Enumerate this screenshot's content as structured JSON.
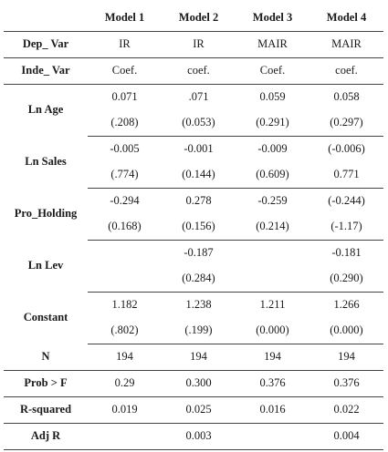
{
  "table": {
    "models": [
      "Model 1",
      "Model 2",
      "Model 3",
      "Model 4"
    ],
    "dep_var": {
      "label": "Dep_ Var",
      "values": [
        "IR",
        "IR",
        "MAIR",
        "MAIR"
      ]
    },
    "inde_var": {
      "label": "Inde_ Var",
      "values": [
        "Coef.",
        "coef.",
        "Coef.",
        "coef."
      ]
    },
    "rows": [
      {
        "label": "Ln Age",
        "coef": [
          "0.071",
          ".071",
          "0.059",
          "0.058"
        ],
        "se": [
          "(.208)",
          "(0.053)",
          "(0.291)",
          "(0.297)"
        ]
      },
      {
        "label": "Ln Sales",
        "coef": [
          "-0.005",
          "-0.001",
          "-0.009",
          "(-0.006)"
        ],
        "se": [
          "(.774)",
          "(0.144)",
          "(0.609)",
          "0.771"
        ]
      },
      {
        "label": "Pro_Holding",
        "coef": [
          "-0.294",
          "0.278",
          "-0.259",
          "(-0.244)"
        ],
        "se": [
          "(0.168)",
          "(0.156)",
          "(0.214)",
          "(-1.17)"
        ]
      },
      {
        "label": "Ln Lev",
        "coef": [
          "",
          "-0.187",
          "",
          "-0.181"
        ],
        "se": [
          "",
          "(0.284)",
          "",
          "(0.290)"
        ]
      },
      {
        "label": "Constant",
        "coef": [
          "1.182",
          "1.238",
          "1.211",
          "1.266"
        ],
        "se": [
          "(.802)",
          "(.199)",
          "(0.000)",
          "(0.000)"
        ]
      }
    ],
    "stats": [
      {
        "label": "N",
        "values": [
          "194",
          "194",
          "194",
          "194"
        ]
      },
      {
        "label": "Prob > F",
        "values": [
          "0.29",
          "0.300",
          "0.376",
          "0.376"
        ]
      },
      {
        "label": "R-squared",
        "values": [
          "0.019",
          "0.025",
          "0.016",
          "0.022"
        ]
      },
      {
        "label": "Adj R",
        "values": [
          "",
          "0.003",
          "",
          "0.004"
        ]
      }
    ]
  }
}
